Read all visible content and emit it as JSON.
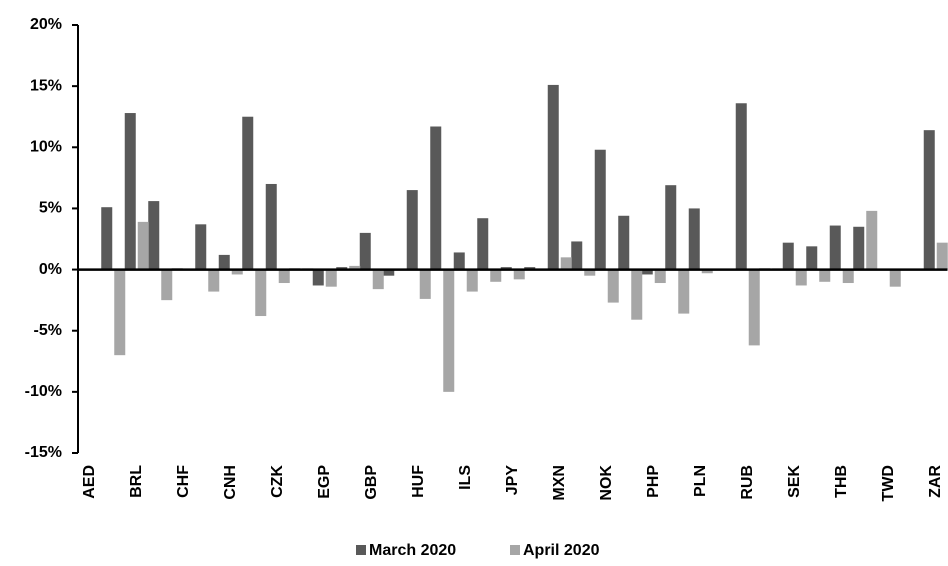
{
  "chart_data": {
    "type": "bar",
    "categories": [
      "AED",
      null,
      "BRL",
      null,
      "CHF",
      null,
      "CNH",
      null,
      "CZK",
      null,
      "EGP",
      null,
      "GBP",
      null,
      "HUF",
      null,
      "ILS",
      null,
      "JPY",
      null,
      "MXN",
      null,
      "NOK",
      null,
      "PHP",
      null,
      "PLN",
      null,
      "RUB",
      null,
      "SEK",
      null,
      "THB",
      null,
      "TWD",
      null,
      "ZAR"
    ],
    "series": [
      {
        "name": "March 2020",
        "color": "#595959",
        "values": [
          0,
          5.1,
          12.8,
          5.6,
          0.1,
          3.7,
          1.2,
          12.5,
          7.0,
          0.1,
          -1.3,
          0.2,
          3.0,
          -0.5,
          6.5,
          11.7,
          1.4,
          4.2,
          0.2,
          0.2,
          15.1,
          2.3,
          9.8,
          4.4,
          -0.4,
          6.9,
          5.0,
          0,
          13.6,
          0.1,
          2.2,
          1.9,
          3.6,
          3.5,
          0,
          0,
          11.4
        ]
      },
      {
        "name": "April 2020",
        "color": "#a6a6a6",
        "values": [
          0,
          -7.0,
          3.9,
          -2.5,
          0,
          -1.8,
          -0.4,
          -3.8,
          -1.1,
          0.1,
          -1.4,
          0.3,
          -1.6,
          0,
          -2.4,
          -10.0,
          -1.8,
          -1.0,
          -0.8,
          0,
          1.0,
          -0.5,
          -2.7,
          -4.1,
          -1.1,
          -3.6,
          -0.3,
          0,
          -6.2,
          0.1,
          -1.3,
          -1.0,
          -1.1,
          4.8,
          -1.4,
          0,
          2.2
        ]
      }
    ],
    "ylim": [
      -15,
      20
    ],
    "yticks": [
      {
        "value": -15,
        "label": "-15%"
      },
      {
        "value": -10,
        "label": "-10%"
      },
      {
        "value": -5,
        "label": "-5%"
      },
      {
        "value": 0,
        "label": "0%"
      },
      {
        "value": 5,
        "label": "5%"
      },
      {
        "value": 10,
        "label": "10%"
      },
      {
        "value": 15,
        "label": "15%"
      },
      {
        "value": 20,
        "label": "20%"
      }
    ],
    "legend": "bottom"
  }
}
